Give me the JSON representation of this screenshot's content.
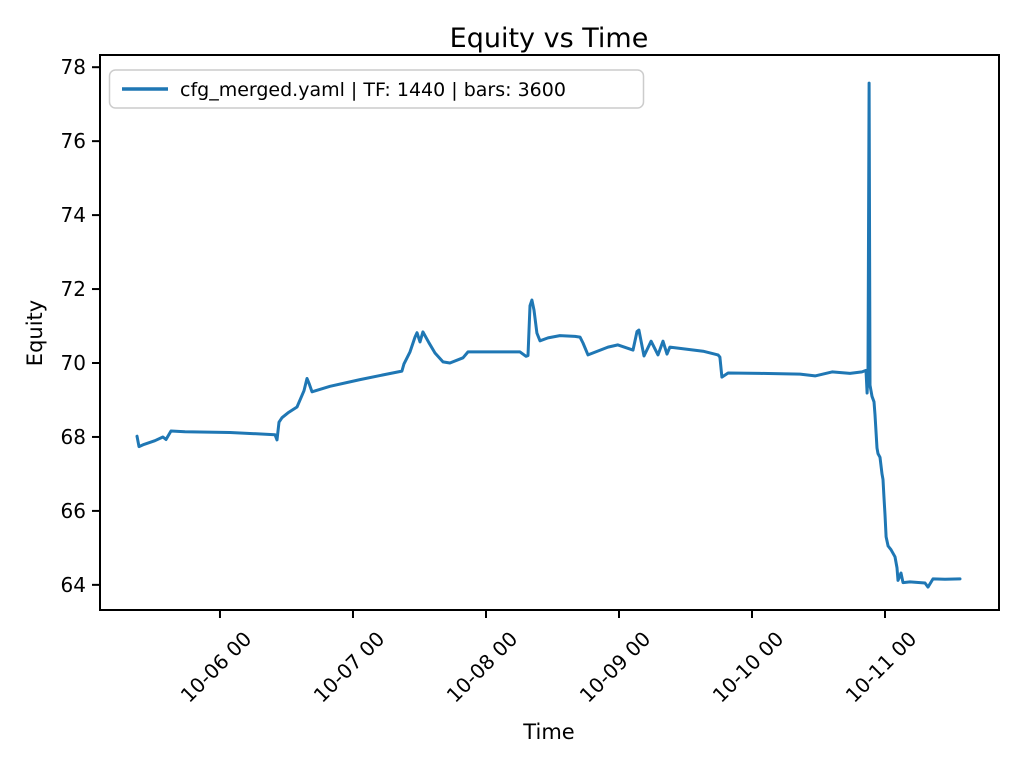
{
  "chart": {
    "title": "Equity vs Time",
    "xlabel": "Time",
    "ylabel": "Equity",
    "legend_label": "cfg_merged.yaml | TF: 1440 | bars: 3600"
  },
  "chart_data": {
    "type": "line",
    "title": "Equity vs Time",
    "xlabel": "Time",
    "ylabel": "Equity",
    "grid": false,
    "legend_position": "upper left",
    "legend_entries": [
      "cfg_merged.yaml | TF: 1440 | bars: 3600"
    ],
    "line_color": "#1f77b4",
    "x_unit": "days relative to 10-06 00:00",
    "xlim": [
      -0.902,
      5.857
    ],
    "ylim": [
      63.32,
      78.33
    ],
    "x_ticks": [
      0,
      1,
      2,
      3,
      4,
      5
    ],
    "x_tick_labels": [
      "10-06 00",
      "10-07 00",
      "10-08 00",
      "10-09 00",
      "10-10 00",
      "10-11 00"
    ],
    "y_ticks": [
      64,
      66,
      68,
      70,
      72,
      74,
      76,
      78
    ],
    "y_tick_labels": [
      "64",
      "66",
      "68",
      "70",
      "72",
      "74",
      "76",
      "78"
    ],
    "series": [
      {
        "name": "cfg_merged.yaml | TF: 1440 | bars: 3600",
        "color": "#1f77b4",
        "points": [
          [
            -0.624,
            68.02
          ],
          [
            -0.609,
            67.74
          ],
          [
            -0.571,
            67.8
          ],
          [
            -0.489,
            67.9
          ],
          [
            -0.429,
            68.0
          ],
          [
            -0.406,
            67.93
          ],
          [
            -0.368,
            68.16
          ],
          [
            -0.263,
            68.14
          ],
          [
            0.075,
            68.12
          ],
          [
            0.414,
            68.06
          ],
          [
            0.429,
            67.92
          ],
          [
            0.444,
            68.4
          ],
          [
            0.466,
            68.52
          ],
          [
            0.511,
            68.65
          ],
          [
            0.579,
            68.81
          ],
          [
            0.632,
            69.25
          ],
          [
            0.654,
            69.58
          ],
          [
            0.669,
            69.45
          ],
          [
            0.692,
            69.22
          ],
          [
            0.827,
            69.37
          ],
          [
            1.053,
            69.55
          ],
          [
            1.368,
            69.78
          ],
          [
            1.383,
            69.97
          ],
          [
            1.429,
            70.3
          ],
          [
            1.466,
            70.7
          ],
          [
            1.481,
            70.82
          ],
          [
            1.504,
            70.57
          ],
          [
            1.526,
            70.84
          ],
          [
            1.571,
            70.55
          ],
          [
            1.617,
            70.27
          ],
          [
            1.677,
            70.03
          ],
          [
            1.729,
            70.0
          ],
          [
            1.827,
            70.14
          ],
          [
            1.865,
            70.3
          ],
          [
            2.256,
            70.3
          ],
          [
            2.301,
            70.18
          ],
          [
            2.316,
            70.2
          ],
          [
            2.331,
            71.55
          ],
          [
            2.345,
            71.7
          ],
          [
            2.361,
            71.43
          ],
          [
            2.383,
            70.81
          ],
          [
            2.406,
            70.6
          ],
          [
            2.466,
            70.68
          ],
          [
            2.556,
            70.74
          ],
          [
            2.669,
            70.72
          ],
          [
            2.707,
            70.7
          ],
          [
            2.729,
            70.54
          ],
          [
            2.767,
            70.22
          ],
          [
            2.917,
            70.43
          ],
          [
            2.992,
            70.49
          ],
          [
            3.105,
            70.35
          ],
          [
            3.135,
            70.85
          ],
          [
            3.15,
            70.89
          ],
          [
            3.188,
            70.19
          ],
          [
            3.241,
            70.59
          ],
          [
            3.293,
            70.22
          ],
          [
            3.331,
            70.59
          ],
          [
            3.361,
            70.24
          ],
          [
            3.383,
            70.43
          ],
          [
            3.632,
            70.32
          ],
          [
            3.744,
            70.22
          ],
          [
            3.759,
            70.16
          ],
          [
            3.774,
            69.62
          ],
          [
            3.82,
            69.73
          ],
          [
            4.06,
            69.72
          ],
          [
            4.361,
            69.7
          ],
          [
            4.474,
            69.65
          ],
          [
            4.602,
            69.76
          ],
          [
            4.737,
            69.72
          ],
          [
            4.827,
            69.76
          ],
          [
            4.857,
            69.8
          ],
          [
            4.865,
            69.19
          ],
          [
            4.872,
            69.8
          ],
          [
            4.88,
            77.57
          ],
          [
            4.887,
            69.4
          ],
          [
            4.902,
            69.1
          ],
          [
            4.917,
            68.95
          ],
          [
            4.925,
            68.6
          ],
          [
            4.94,
            67.7
          ],
          [
            4.947,
            67.55
          ],
          [
            4.962,
            67.45
          ],
          [
            4.977,
            67.0
          ],
          [
            4.985,
            66.85
          ],
          [
            4.992,
            66.4
          ],
          [
            5.0,
            65.9
          ],
          [
            5.008,
            65.3
          ],
          [
            5.023,
            65.05
          ],
          [
            5.045,
            64.95
          ],
          [
            5.075,
            64.76
          ],
          [
            5.09,
            64.46
          ],
          [
            5.098,
            64.12
          ],
          [
            5.12,
            64.32
          ],
          [
            5.135,
            64.06
          ],
          [
            5.188,
            64.08
          ],
          [
            5.301,
            64.05
          ],
          [
            5.323,
            63.94
          ],
          [
            5.361,
            64.16
          ],
          [
            5.451,
            64.15
          ],
          [
            5.564,
            64.16
          ]
        ]
      }
    ]
  }
}
